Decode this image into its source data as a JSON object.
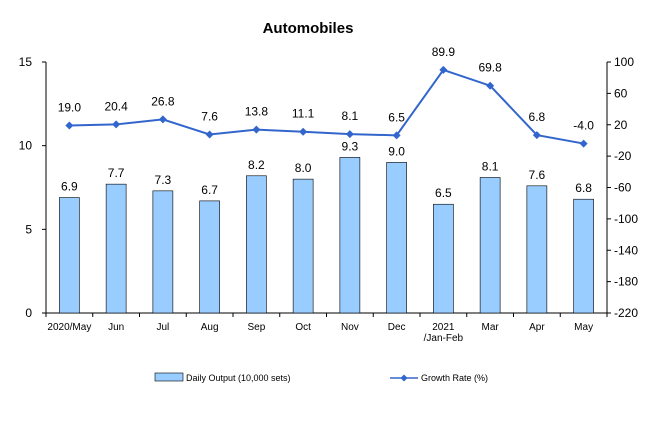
{
  "chart_data": {
    "type": "bar",
    "title": "Automobiles",
    "categories": [
      "2020/May",
      "Jun",
      "Jul",
      "Aug",
      "Sep",
      "Oct",
      "Nov",
      "Dec",
      "2021\n/Jan-Feb",
      "Mar",
      "Apr",
      "May"
    ],
    "series": [
      {
        "name": "Daily Output (10,000 sets)",
        "type": "bar",
        "axis": "left",
        "values": [
          6.9,
          7.7,
          7.3,
          6.7,
          8.2,
          8.0,
          9.3,
          9.0,
          6.5,
          8.1,
          7.6,
          6.8
        ],
        "color": "#99ccff"
      },
      {
        "name": "Growth Rate (%)",
        "type": "line",
        "axis": "right",
        "values": [
          19.0,
          20.4,
          26.8,
          7.6,
          13.8,
          11.1,
          8.1,
          6.5,
          89.9,
          69.8,
          6.8,
          -4.0
        ],
        "color": "#3366cc"
      }
    ],
    "y_left": {
      "ylim": [
        0,
        15
      ],
      "ticks": [
        0,
        5,
        10,
        15
      ]
    },
    "y_right": {
      "ylim": [
        -220,
        100
      ],
      "ticks": [
        100,
        60,
        20,
        -20,
        -60,
        -100,
        -140,
        -180,
        -220
      ]
    },
    "grid": false,
    "legend_position": "bottom"
  }
}
